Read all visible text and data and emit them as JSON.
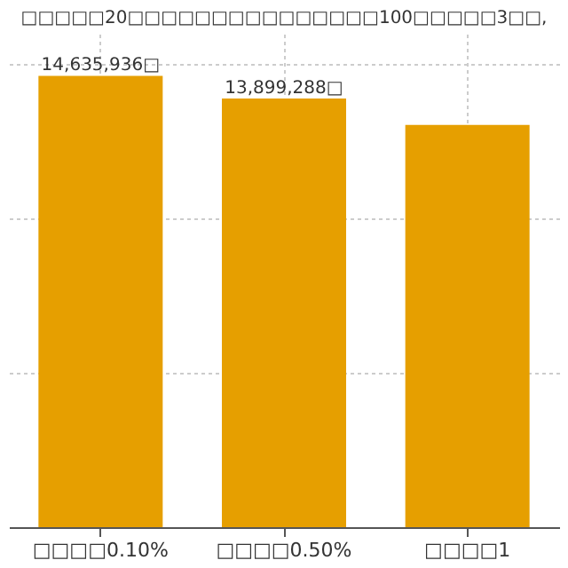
{
  "chart_data": {
    "type": "bar",
    "title": "□□□□□20□□□□□□□□□□□□□□□100□□□□□3□□,",
    "categories": [
      "□□□□0.10%",
      "□□□□0.50%",
      "□□□□1"
    ],
    "series": [
      {
        "color": "#e69f00",
        "values": [
          14635936,
          13899288,
          13046000
        ],
        "value_labels": [
          "14,635,936□",
          "13,899,288□",
          null
        ]
      }
    ],
    "ylim": [
      0,
      16000000
    ],
    "tick_labels": "x",
    "grid": true
  }
}
